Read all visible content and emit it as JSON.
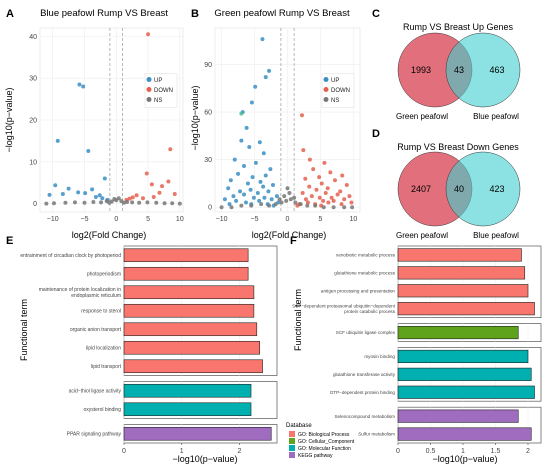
{
  "panel_labels": [
    "A",
    "B",
    "C",
    "D",
    "E",
    "F"
  ],
  "database_legend": {
    "title": "Database",
    "items": [
      {
        "label": "GO: Biological Process",
        "color": "#f8766d"
      },
      {
        "label": "GO: Cellular_Component",
        "color": "#5fa21c"
      },
      {
        "label": "GO: Molecular Function",
        "color": "#00b0b0"
      },
      {
        "label": "KEGG pathway",
        "color": "#a06cc0"
      }
    ]
  },
  "chart_data": [
    {
      "type": "scatter",
      "panel": "A",
      "title": "Blue peafowl Rump VS Breast",
      "xlabel": "log2(Fold Change)",
      "ylabel": "−log10(p−value)",
      "xlim": [
        -12,
        10.5
      ],
      "ylim": [
        -2,
        42
      ],
      "xticks": [
        -10,
        -5,
        0,
        5,
        10
      ],
      "yticks": [
        0,
        10,
        20,
        30,
        40
      ],
      "thresholds_x": [
        -1,
        1
      ],
      "legend": {
        "position": "right",
        "items": [
          {
            "label": "UP",
            "color": "#3a8fc4"
          },
          {
            "label": "DOWN",
            "color": "#e4604e"
          },
          {
            "label": "NS",
            "color": "#777777"
          }
        ]
      },
      "series": [
        {
          "name": "UP",
          "points": [
            [
              -5.8,
              28.5
            ],
            [
              -5.2,
              28
            ],
            [
              -9.2,
              15
            ],
            [
              -4.4,
              12.6
            ],
            [
              -9.6,
              4.4
            ],
            [
              -7.5,
              3.6
            ],
            [
              -6,
              2.7
            ],
            [
              -3.8,
              3.4
            ],
            [
              -2.6,
              2
            ],
            [
              -1.8,
              6
            ],
            [
              -8.4,
              2.3
            ],
            [
              -4.9,
              2.5
            ],
            [
              -3.2,
              1.6
            ],
            [
              -2.2,
              1.3
            ],
            [
              -10.5,
              2.1
            ],
            [
              -1.4,
              0.9
            ]
          ]
        },
        {
          "name": "DOWN",
          "points": [
            [
              5,
              40.5
            ],
            [
              8.5,
              13
            ],
            [
              4.8,
              7.2
            ],
            [
              5.6,
              4.6
            ],
            [
              7.2,
              4.2
            ],
            [
              6.8,
              2.6
            ],
            [
              9.2,
              2.3
            ],
            [
              3.2,
              2
            ],
            [
              2.6,
              1.5
            ],
            [
              2.1,
              1.2
            ],
            [
              8.2,
              5.3
            ],
            [
              5.9,
              1.6
            ],
            [
              4.2,
              1.3
            ],
            [
              1.6,
              0.9
            ]
          ]
        },
        {
          "name": "NS",
          "points": [
            [
              -11,
              0
            ],
            [
              -9.8,
              0.1
            ],
            [
              -8,
              0.2
            ],
            [
              -6.5,
              0.3
            ],
            [
              -5,
              0.2
            ],
            [
              -3.6,
              0.4
            ],
            [
              -2.4,
              0.3
            ],
            [
              -1.5,
              0.6
            ],
            [
              -0.7,
              0.5
            ],
            [
              0,
              0.8
            ],
            [
              0.8,
              0.6
            ],
            [
              1.7,
              0.4
            ],
            [
              2.5,
              0.3
            ],
            [
              3.6,
              0.2
            ],
            [
              4.9,
              0.3
            ],
            [
              6.3,
              0.2
            ],
            [
              7.6,
              0.1
            ],
            [
              8.8,
              0.1
            ],
            [
              10,
              0
            ],
            [
              -0.3,
              1.1
            ],
            [
              0.4,
              1.3
            ],
            [
              -1.1,
              0.2
            ],
            [
              1.2,
              0.2
            ]
          ]
        }
      ]
    },
    {
      "type": "scatter",
      "panel": "B",
      "title": "Green peafowl Rump VS Breast",
      "xlabel": "log2(Fold Change)",
      "ylabel": "−log10(p−value)",
      "xlim": [
        -11,
        11
      ],
      "ylim": [
        -3,
        113
      ],
      "xticks": [
        -10,
        -5,
        0,
        5,
        10
      ],
      "yticks": [
        0,
        30,
        60,
        90
      ],
      "thresholds_x": [
        -1,
        1
      ],
      "legend": {
        "position": "right",
        "items": [
          {
            "label": "UP",
            "color": "#3a8fc4"
          },
          {
            "label": "DOWN",
            "color": "#e4604e"
          },
          {
            "label": "NS",
            "color": "#777777"
          }
        ]
      },
      "series": [
        {
          "name": "UP",
          "points": [
            [
              -3.8,
              106
            ],
            [
              -2.8,
              86
            ],
            [
              -3.3,
              82
            ],
            [
              -4.9,
              76
            ],
            [
              -5.4,
              66
            ],
            [
              -6.8,
              60
            ],
            [
              -6.2,
              50
            ],
            [
              -7,
              42
            ],
            [
              -4.2,
              41
            ],
            [
              -5.8,
              38
            ],
            [
              -3.6,
              34
            ],
            [
              -8,
              30
            ],
            [
              -4.8,
              28
            ],
            [
              -6.6,
              26
            ],
            [
              -2.6,
              24
            ],
            [
              -7.5,
              21
            ],
            [
              -3.3,
              20
            ],
            [
              -5.3,
              19
            ],
            [
              -8.6,
              17
            ],
            [
              -4.1,
              16
            ],
            [
              -6,
              15
            ],
            [
              -2.2,
              14
            ],
            [
              -3.7,
              13
            ],
            [
              -9,
              12
            ],
            [
              -5.6,
              11
            ],
            [
              -7.2,
              10
            ],
            [
              -2.9,
              10
            ],
            [
              -4.5,
              9
            ],
            [
              -6.6,
              8
            ],
            [
              -8.2,
              7
            ],
            [
              -1.6,
              7
            ],
            [
              -3.5,
              6
            ],
            [
              -5.1,
              6
            ],
            [
              -9.5,
              5
            ],
            [
              -2.4,
              5
            ],
            [
              -7.8,
              4
            ],
            [
              -4.3,
              4
            ],
            [
              -6.3,
              3
            ],
            [
              -1.4,
              3
            ],
            [
              -8.8,
              2
            ],
            [
              -3,
              2
            ],
            [
              -5.5,
              2
            ],
            [
              -2.1,
              1
            ]
          ]
        },
        {
          "name": "DOWN",
          "points": [
            [
              2.2,
              58
            ],
            [
              2.4,
              36
            ],
            [
              3.4,
              30
            ],
            [
              5.6,
              28
            ],
            [
              3.9,
              24
            ],
            [
              6.5,
              22
            ],
            [
              8.3,
              20
            ],
            [
              4.8,
              19
            ],
            [
              2.7,
              18
            ],
            [
              7.2,
              17
            ],
            [
              5.2,
              15
            ],
            [
              9,
              14
            ],
            [
              3.3,
              13
            ],
            [
              6.1,
              12
            ],
            [
              4.4,
              11
            ],
            [
              8,
              10
            ],
            [
              2.3,
              9
            ],
            [
              5.8,
              9
            ],
            [
              7.6,
              8
            ],
            [
              3.7,
              7
            ],
            [
              9.4,
              7
            ],
            [
              6.7,
              6
            ],
            [
              4.9,
              6
            ],
            [
              2.8,
              5
            ],
            [
              8.6,
              5
            ],
            [
              5.4,
              4
            ],
            [
              7,
              4
            ],
            [
              3.1,
              3
            ],
            [
              6.2,
              3
            ],
            [
              9.7,
              3
            ],
            [
              4.2,
              2
            ],
            [
              1.8,
              2
            ],
            [
              8.2,
              2
            ],
            [
              5.1,
              1
            ],
            [
              1.5,
              1
            ]
          ]
        },
        {
          "name": "NS",
          "points": [
            [
              -10,
              0
            ],
            [
              -8.5,
              0
            ],
            [
              -7,
              1
            ],
            [
              -5.5,
              1
            ],
            [
              -4,
              2
            ],
            [
              -2.8,
              1
            ],
            [
              -1.8,
              2
            ],
            [
              -0.9,
              3
            ],
            [
              -0.2,
              4
            ],
            [
              0.5,
              5
            ],
            [
              1.2,
              3
            ],
            [
              2,
              2
            ],
            [
              3,
              1
            ],
            [
              4.2,
              1
            ],
            [
              5.5,
              0
            ],
            [
              7,
              0
            ],
            [
              8.6,
              0
            ],
            [
              9.8,
              0
            ],
            [
              -0.5,
              7
            ],
            [
              0.3,
              9
            ],
            [
              -1.2,
              5
            ],
            [
              1,
              6
            ],
            [
              0,
              12
            ]
          ]
        },
        {
          "name": "highlight",
          "color": "#4db89a",
          "points": [
            [
              -7,
              59
            ]
          ]
        }
      ]
    },
    {
      "type": "venn",
      "panel": "C",
      "title": "Rump VS Breast Up Genes",
      "sets": [
        {
          "name": "Green peafowl",
          "only": 1993,
          "color": "#e2707c"
        },
        {
          "name": "Blue peafowl",
          "only": 463,
          "color": "#3fcfcf"
        }
      ],
      "intersection": 43
    },
    {
      "type": "venn",
      "panel": "D",
      "title": "Rump VS Breast Down Genes",
      "sets": [
        {
          "name": "Green peafowl",
          "only": 2407,
          "color": "#e2707c"
        },
        {
          "name": "Blue peafowl",
          "only": 423,
          "color": "#3fcfcf"
        }
      ],
      "intersection": 40
    },
    {
      "type": "bar",
      "panel": "E",
      "orientation": "horizontal",
      "xlabel": "−log10(p−value)",
      "ylabel": "Functional term",
      "xlim": [
        0,
        2.65
      ],
      "xticks": [
        0,
        1,
        2
      ],
      "groups": [
        {
          "database": "GO: Biological Process",
          "terms": [
            {
              "label": "entrainment of circadian clock by photoperiod",
              "value": 2.15
            },
            {
              "label": "photoperiodism",
              "value": 2.15
            },
            {
              "label": "maintenance of protein localization in endoplasmic reticulum",
              "value": 2.25
            },
            {
              "label": "response to sterol",
              "value": 2.25
            },
            {
              "label": "organic anion transport",
              "value": 2.3
            },
            {
              "label": "lipid localization",
              "value": 2.35
            },
            {
              "label": "lipid transport",
              "value": 2.4
            }
          ]
        },
        {
          "database": "GO: Molecular Function",
          "terms": [
            {
              "label": "acid−thiol ligase activity",
              "value": 2.2
            },
            {
              "label": "oxysterol binding",
              "value": 2.2
            }
          ]
        },
        {
          "database": "KEGG pathway",
          "terms": [
            {
              "label": "PPAR signaling pathway",
              "value": 2.55
            }
          ]
        }
      ]
    },
    {
      "type": "bar",
      "panel": "F",
      "orientation": "horizontal",
      "xlabel": "−log10(p−value)",
      "ylabel": "Functional term",
      "xlim": [
        0,
        2.2
      ],
      "xticks": [
        0,
        0.5,
        1,
        1.5,
        2
      ],
      "groups": [
        {
          "database": "GO: Biological Process",
          "terms": [
            {
              "label": "xenobiotic metabolic process",
              "value": 1.9
            },
            {
              "label": "glutathione metabolic process",
              "value": 1.95
            },
            {
              "label": "antigen processing and presentation",
              "value": 2.0
            },
            {
              "label": "SCF−dependent proteasomal ubiquitin−dependent protein catabolic process",
              "value": 2.1
            }
          ]
        },
        {
          "database": "GO: Cellular_Component",
          "terms": [
            {
              "label": "SCF ubiquitin ligase complex",
              "value": 1.85
            }
          ]
        },
        {
          "database": "GO: Molecular Function",
          "terms": [
            {
              "label": "myosin binding",
              "value": 2.0
            },
            {
              "label": "glutathione transferase activity",
              "value": 2.05
            },
            {
              "label": "GTP−dependent protein binding",
              "value": 2.1
            }
          ]
        },
        {
          "database": "KEGG pathway",
          "terms": [
            {
              "label": "Selenocompound metabolism",
              "value": 1.85
            },
            {
              "label": "Sulfur metabolism",
              "value": 2.05
            }
          ]
        }
      ]
    }
  ]
}
